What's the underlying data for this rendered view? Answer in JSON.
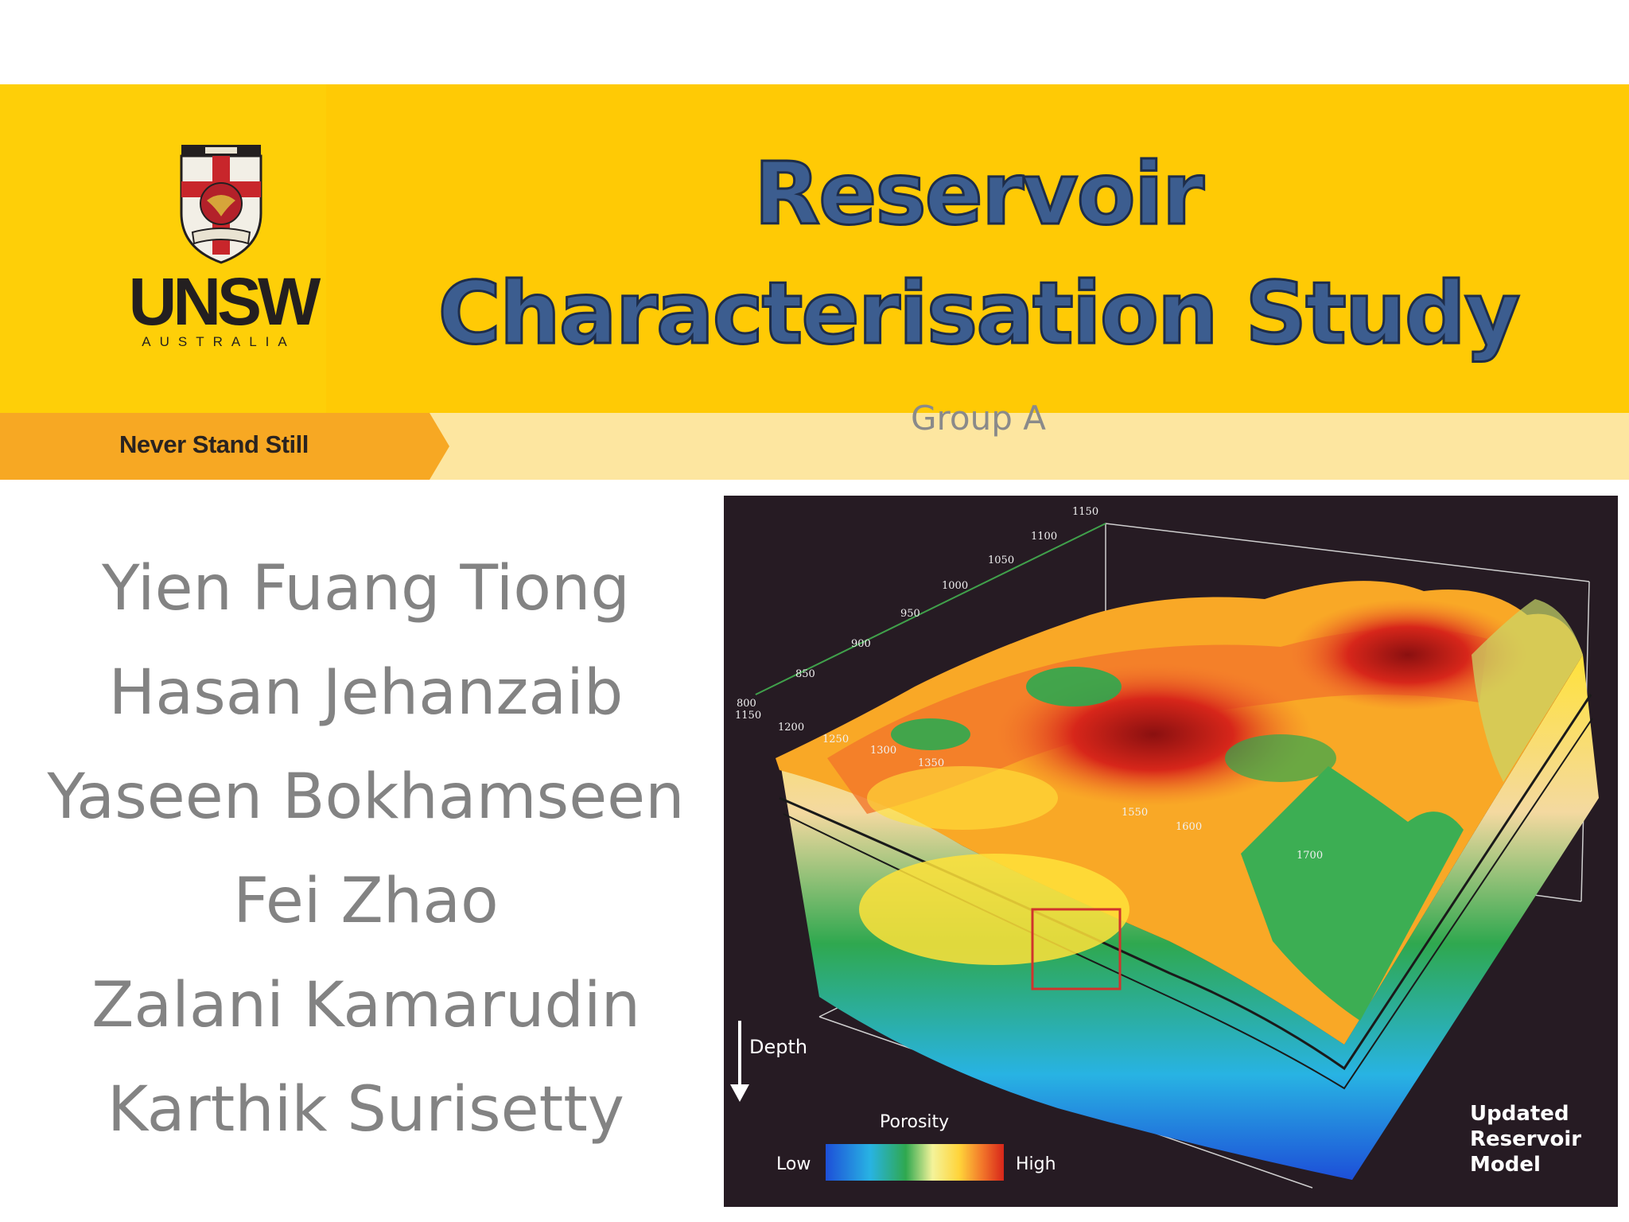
{
  "header": {
    "logo_text": "UNSW",
    "logo_subtext": "AUSTRALIA",
    "tagline": "Never Stand Still",
    "title": "Reservoir Characterisation Study",
    "subtitle": "Group A"
  },
  "authors": [
    "Yien Fuang Tiong",
    "Hasan Jehanzaib",
    "Yaseen Bokhamseen",
    "Fei Zhao",
    "Zalani Kamarudin",
    "Karthik Surisetty"
  ],
  "figure": {
    "depth_label": "Depth",
    "legend_title": "Porosity",
    "legend_low": "Low",
    "legend_high": "High",
    "caption": [
      "Updated",
      "Reservoir",
      "Model"
    ],
    "axis_ticks_top": [
      "800",
      "850",
      "900",
      "950",
      "1000",
      "1050",
      "1100",
      "1150"
    ],
    "axis_ticks_side": [
      "1150",
      "1200",
      "1250",
      "1300",
      "1350",
      "1550",
      "1600",
      "1700"
    ],
    "colors": {
      "low": "#1d4fd8",
      "mid": "#2fa84f",
      "mid_high": "#ffe23a",
      "high": "#d7261a",
      "background": "#261b23"
    }
  }
}
